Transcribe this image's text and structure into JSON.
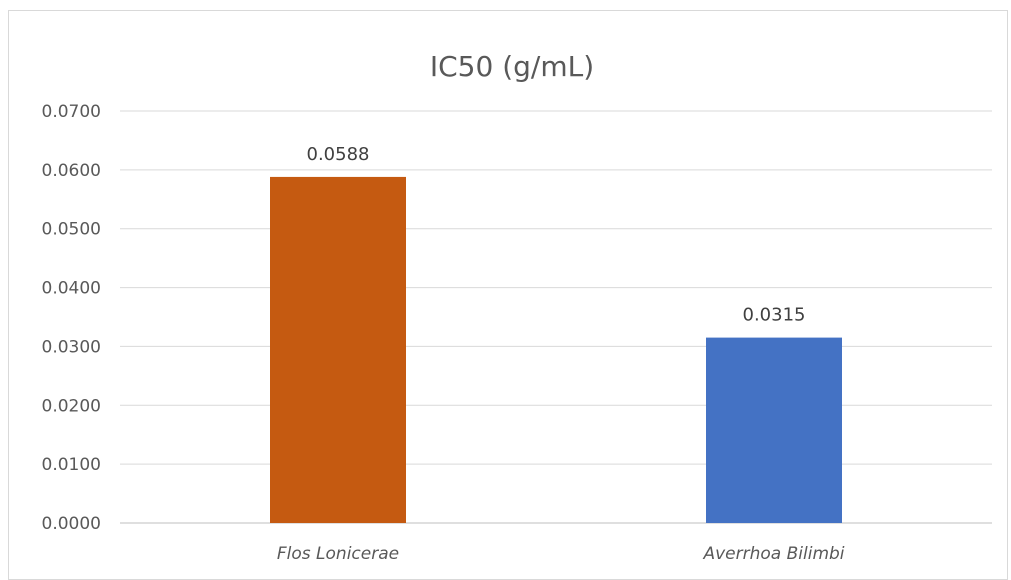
{
  "chart_data": {
    "type": "bar",
    "title": "IC50 (g/mL)",
    "xlabel": "",
    "ylabel": "",
    "categories": [
      "Flos Lonicerae",
      "Averrhoa Bilimbi"
    ],
    "values": [
      0.0588,
      0.0315
    ],
    "value_labels": [
      "0.0588",
      "0.0315"
    ],
    "colors": [
      "#C55A11",
      "#4472C4"
    ],
    "ylim": [
      0,
      0.07
    ],
    "yticks": [
      0,
      0.01,
      0.02,
      0.03,
      0.04,
      0.05,
      0.06,
      0.07
    ],
    "ytick_labels": [
      "0.0000",
      "0.0100",
      "0.0200",
      "0.0300",
      "0.0400",
      "0.0500",
      "0.0600",
      "0.0700"
    ],
    "grid": true,
    "legend": "none",
    "category_label_style": "italic"
  }
}
